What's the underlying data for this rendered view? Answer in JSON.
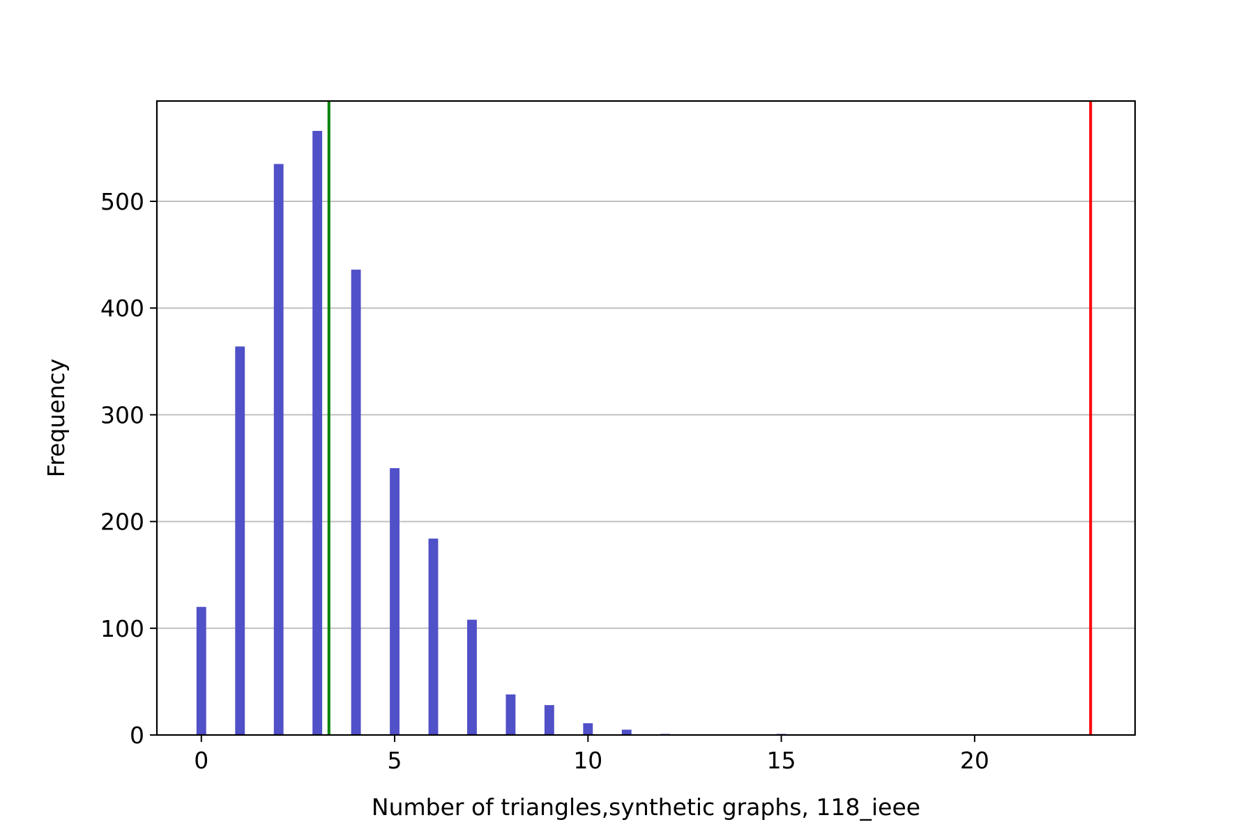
{
  "chart_data": {
    "type": "bar",
    "title": "",
    "xlabel": "Number of triangles,synthetic graphs, 118_ieee",
    "ylabel": "Frequency",
    "x": [
      0,
      1,
      2,
      3,
      4,
      5,
      6,
      7,
      8,
      9,
      10,
      11,
      12,
      15
    ],
    "values": [
      120,
      364,
      535,
      566,
      436,
      250,
      184,
      108,
      38,
      28,
      11,
      5,
      1,
      1
    ],
    "xlim": [
      -1.15,
      24.15
    ],
    "ylim": [
      0,
      594
    ],
    "xticks": [
      0,
      5,
      10,
      15,
      20
    ],
    "yticks": [
      0,
      100,
      200,
      300,
      400,
      500
    ],
    "grid": "horizontal",
    "bar_color": "#5050c8",
    "vlines": [
      {
        "x": 3.3,
        "color": "#008000"
      },
      {
        "x": 23.0,
        "color": "#ff0000"
      }
    ]
  }
}
